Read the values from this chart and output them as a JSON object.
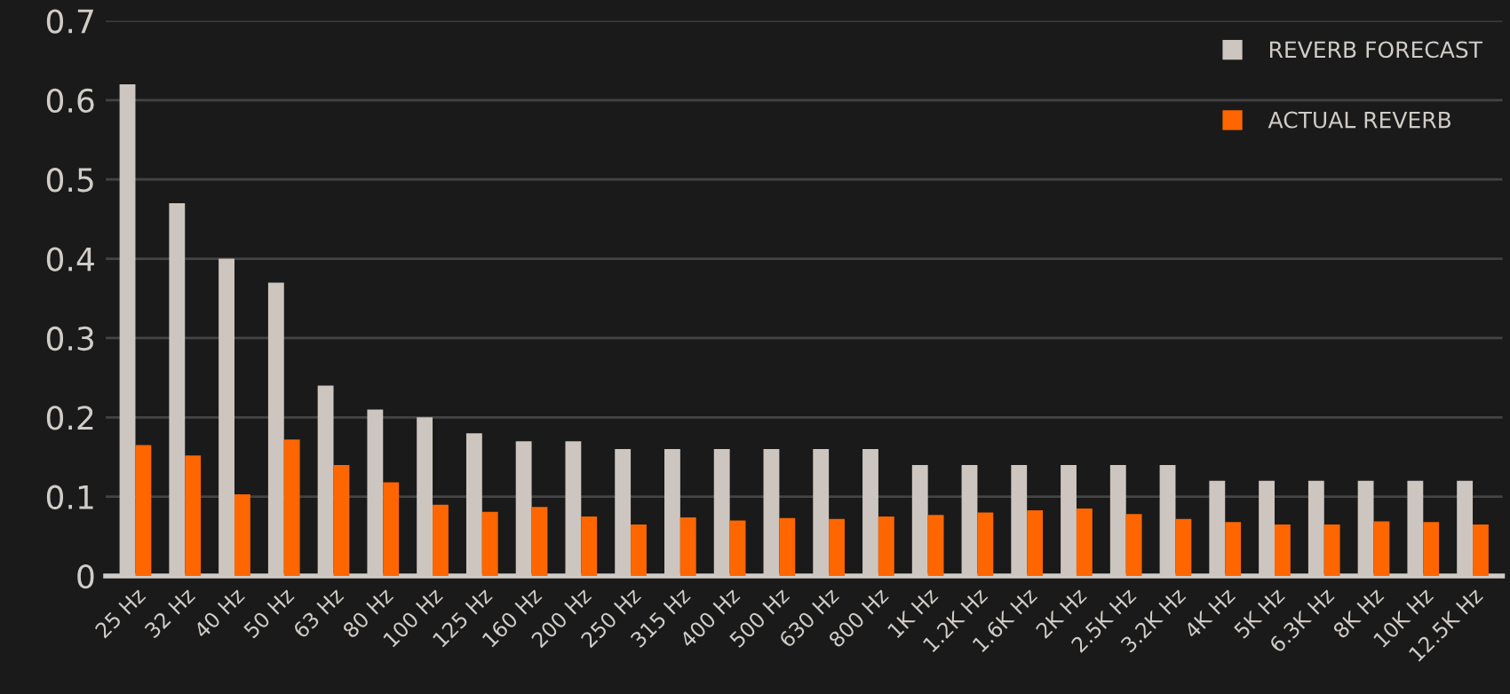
{
  "chart_data": {
    "type": "bar",
    "categories": [
      "25 Hz",
      "32 Hz",
      "40 Hz",
      "50 Hz",
      "63 Hz",
      "80 Hz",
      "100 Hz",
      "125 Hz",
      "160 Hz",
      "200 Hz",
      "250 Hz",
      "315 Hz",
      "400 Hz",
      "500 Hz",
      "630 Hz",
      "800 Hz",
      "1K Hz",
      "1.2K Hz",
      "1.6K Hz",
      "2K Hz",
      "2.5K Hz",
      "3.2K Hz",
      "4K Hz",
      "5K Hz",
      "6.3K Hz",
      "8K Hz",
      "10K Hz",
      "12.5K Hz"
    ],
    "series": [
      {
        "name": "REVERB FORECAST",
        "color": "#cdc6c0",
        "values": [
          0.62,
          0.47,
          0.4,
          0.37,
          0.24,
          0.21,
          0.2,
          0.18,
          0.17,
          0.17,
          0.16,
          0.16,
          0.16,
          0.16,
          0.16,
          0.16,
          0.14,
          0.14,
          0.14,
          0.14,
          0.14,
          0.14,
          0.12,
          0.12,
          0.12,
          0.12,
          0.12,
          0.12
        ]
      },
      {
        "name": "ACTUAL REVERB",
        "color": "#ff6600",
        "values": [
          0.165,
          0.152,
          0.103,
          0.172,
          0.14,
          0.118,
          0.09,
          0.081,
          0.087,
          0.075,
          0.065,
          0.074,
          0.07,
          0.073,
          0.072,
          0.075,
          0.077,
          0.08,
          0.083,
          0.085,
          0.078,
          0.072,
          0.068,
          0.065,
          0.065,
          0.069,
          0.068,
          0.065
        ]
      }
    ],
    "ylim": [
      0,
      0.7
    ],
    "yticks": [
      0,
      0.1,
      0.2,
      0.3,
      0.4,
      0.5,
      0.6,
      0.7
    ],
    "grid": "y",
    "legend": "top right"
  }
}
